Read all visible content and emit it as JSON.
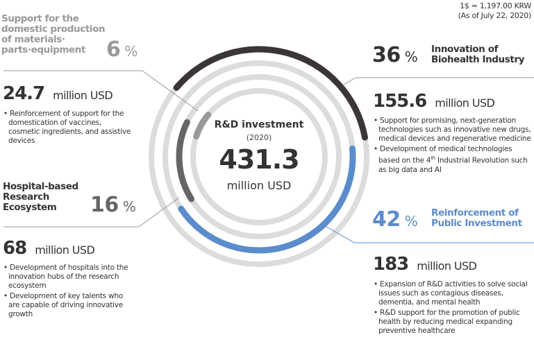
{
  "note": {
    "rate": "1$ = 1,197.00 KRW",
    "date": "(As of July 22, 2020)"
  },
  "center": {
    "title": "R&D investment",
    "year": "(2020)",
    "total": "431.3",
    "unit": "million USD"
  },
  "colors": {
    "biohealth": "#3a3636",
    "public": "#5b8ccc",
    "hospital": "#666666",
    "materials": "#999999",
    "track": "#dcdcdc"
  },
  "chart_data": {
    "type": "radial-bar",
    "title": "R&D investment (2020)",
    "total": 431.3,
    "unit": "million USD",
    "series": [
      {
        "name": "Innovation of Biohealth Industry",
        "percent": 36,
        "value": 155.6
      },
      {
        "name": "Reinforcement of Public Investment",
        "percent": 42,
        "value": 183
      },
      {
        "name": "Hospital-based Research Ecosystem",
        "percent": 16,
        "value": 68
      },
      {
        "name": "Support for the domestic production of materials·parts·equipment",
        "percent": 6,
        "value": 24.7
      }
    ]
  },
  "segments": [
    {
      "label1": "Innovation of",
      "label2": "Biohealth Industry",
      "pct": "36",
      "pct_sign": "%",
      "amount": "155.6",
      "unit": "million USD",
      "bullets": [
        "Support for promising, next-generation technologies such as innovative new drugs, medical devices and regenerative medicine"
      ],
      "bullet2_pre": "Development of medical technologies based on the 4",
      "bullet2_sup": "th",
      "bullet2_post": " Industrial Revolution such as big data and AI"
    },
    {
      "label1": "Reinforcement of",
      "label2": "Public Investment",
      "pct": "42",
      "pct_sign": "%",
      "amount": "183",
      "unit": "million USD",
      "bullets": [
        "Expansion of R&D activities to solve social issues such as contagious diseases, dementia, and mental health",
        "R&D support for the promotion of public health by reducing medical expanding preventive healthcare"
      ]
    },
    {
      "label1": "Hospital-based",
      "label2": "Research",
      "label3": "Ecosystem",
      "pct": "16",
      "pct_sign": "%",
      "amount": "68",
      "unit": "million USD",
      "bullets": [
        "Development of hospitals into the innovation hubs of the research ecosystem",
        "Development of key talents who are capable of driving innovative growth"
      ]
    },
    {
      "label1": "Support for the",
      "label2": "domestic production",
      "label3": "of materials·",
      "label4": "parts·equipment",
      "pct": "6",
      "pct_sign": "%",
      "amount": "24.7",
      "unit": "million USD",
      "bullets": [
        "Reinforcement of support for the domestication of vaccines, cosmetic ingredients, and assistive devices"
      ]
    }
  ]
}
